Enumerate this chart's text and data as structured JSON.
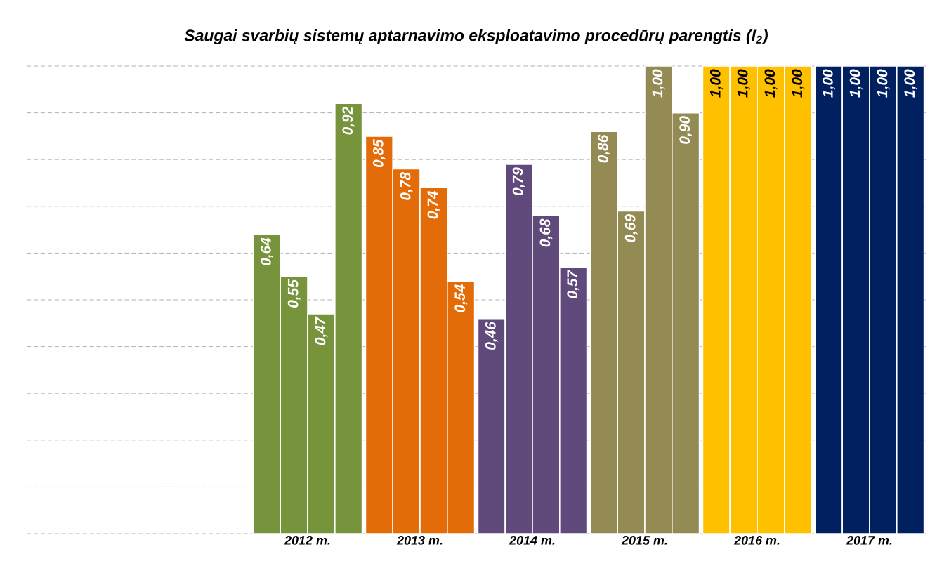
{
  "chart_data": {
    "type": "bar",
    "title": "Saugai svarbių  sistemų aptarnavimo eksploatavimo procedūrų parengtis (I$_{2}$)",
    "categories": [
      null,
      null,
      "2012 m.",
      "2013 m.",
      "2014 m.",
      "2015 m.",
      "2016 m.",
      "2017 m."
    ],
    "series": [
      {
        "colors": [
          "#77933c",
          "#77933c",
          "#77933c",
          "#e36c09",
          "#604a7b",
          "#948a54",
          "#ffc000",
          "#002060"
        ],
        "values": [
          null,
          null,
          0.64,
          0.85,
          0.46,
          0.86,
          1.0,
          1.0
        ],
        "value_labels": [
          null,
          null,
          "0,64",
          "0,85",
          "0,46",
          "0,86",
          "1,00",
          "1,00"
        ]
      },
      {
        "colors": [
          "#77933c",
          "#77933c",
          "#77933c",
          "#e36c09",
          "#604a7b",
          "#948a54",
          "#ffc000",
          "#002060"
        ],
        "values": [
          null,
          null,
          0.55,
          0.78,
          0.79,
          0.69,
          1.0,
          1.0
        ],
        "value_labels": [
          null,
          null,
          "0,55",
          "0,78",
          "0,79",
          "0,69",
          "1,00",
          "1,00"
        ]
      },
      {
        "colors": [
          "#77933c",
          "#77933c",
          "#77933c",
          "#e36c09",
          "#604a7b",
          "#948a54",
          "#ffc000",
          "#002060"
        ],
        "values": [
          null,
          null,
          0.47,
          0.74,
          0.68,
          1.0,
          1.0,
          1.0
        ],
        "value_labels": [
          null,
          null,
          "0,47",
          "0,74",
          "0,68",
          "1,00",
          "1,00",
          "1,00"
        ]
      },
      {
        "colors": [
          "#77933c",
          "#77933c",
          "#77933c",
          "#e36c09",
          "#604a7b",
          "#948a54",
          "#ffc000",
          "#002060"
        ],
        "values": [
          null,
          null,
          0.92,
          0.54,
          0.57,
          0.9,
          1.0,
          1.0
        ],
        "value_labels": [
          null,
          null,
          "0,92",
          "0,54",
          "0,57",
          "0,90",
          "1,00",
          "1,00"
        ]
      }
    ],
    "ylim": [
      0,
      1
    ],
    "yticks": [
      {
        "value": 0,
        "label": null
      },
      {
        "value": 0.1,
        "label": null
      },
      {
        "value": 0.2,
        "label": null
      },
      {
        "value": 0.3,
        "label": null
      },
      {
        "value": 0.4,
        "label": null
      },
      {
        "value": 0.5,
        "label": null
      },
      {
        "value": 0.6,
        "label": null
      },
      {
        "value": 0.7,
        "label": null
      },
      {
        "value": 0.8,
        "label": null
      },
      {
        "value": 0.9,
        "label": null
      },
      {
        "value": 1.0,
        "label": null
      }
    ],
    "grid": "y"
  }
}
